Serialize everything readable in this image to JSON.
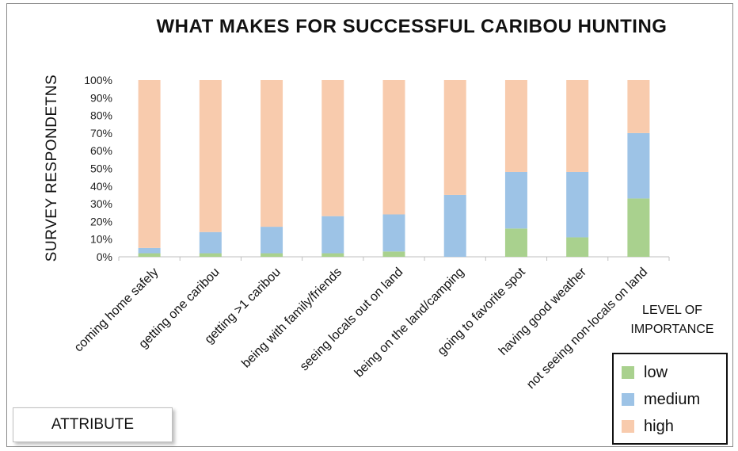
{
  "chart_data": {
    "type": "bar",
    "stacked": true,
    "title": "WHAT MAKES FOR SUCCESSFUL CARIBOU HUNTING",
    "ylabel": "SURVEY RESPONDETNS",
    "xlabel": "ATTRIBUTE",
    "ylim": [
      0,
      100
    ],
    "yticks": [
      "0%",
      "10%",
      "20%",
      "30%",
      "40%",
      "50%",
      "60%",
      "70%",
      "80%",
      "90%",
      "100%"
    ],
    "categories": [
      "coming home safely",
      "getting one caribou",
      "getting >1 caribou",
      "being with family/friends",
      "seeing locals out on land",
      "being on the land/camping",
      "going to favorite spot",
      "having good weather",
      "not seeing non-locals on land"
    ],
    "series": [
      {
        "name": "low",
        "color": "#a9d18e",
        "values": [
          2,
          2,
          2,
          2,
          3,
          0,
          16,
          11,
          33
        ]
      },
      {
        "name": "medium",
        "color": "#9dc3e6",
        "values": [
          3,
          12,
          15,
          21,
          21,
          35,
          32,
          37,
          37
        ]
      },
      {
        "name": "high",
        "color": "#f8cbad",
        "values": [
          95,
          86,
          83,
          77,
          76,
          65,
          52,
          52,
          30
        ]
      }
    ],
    "legend_title": "LEVEL OF IMPORTANCE",
    "legend_position": "right"
  }
}
